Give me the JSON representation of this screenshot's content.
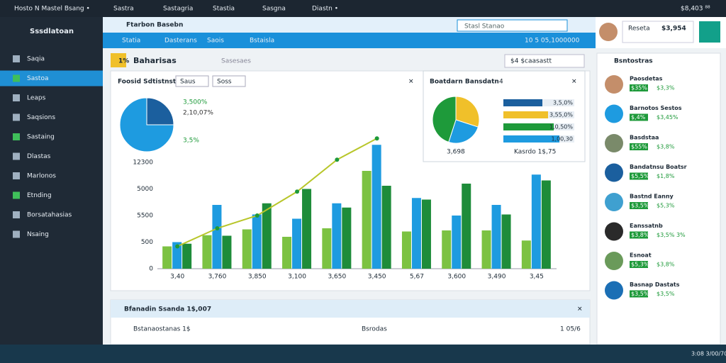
{
  "browser": {
    "tabs": [
      "Hosto N  Mastel Bsang •",
      "Sastra",
      "Sastagria",
      "Stastia",
      "Sasgna",
      "Diastn •"
    ],
    "status": "$8,403 ⁸⁸"
  },
  "sidebar": {
    "brand": "Sssdlatoan",
    "items": [
      "Saqia",
      "Sastoa",
      "Leaps",
      "Saqsions",
      "Sastaing",
      "Dlastas",
      "Marlonos",
      "Etnding",
      "Borsatahasias",
      "Nsaing"
    ]
  },
  "header": {
    "title": "Ftarbon Basebn",
    "tabs": [
      "Statia",
      "Dasterans",
      "Saois",
      "Bstaisla"
    ],
    "search": "Stasl Stanao",
    "filter": "10  5 05,1000000",
    "user_label": "Reseta",
    "user_value": "$3,954"
  },
  "dashboard": {
    "badge": "1%",
    "title": "Baharisas",
    "subtitle": "Sasesaes",
    "dropdown": "$4 $caasastt"
  },
  "chart_panel": {
    "title": "Foosid Sdtistnste",
    "filters": [
      "Saus",
      "Soss"
    ],
    "pie_labels": [
      "3,500%",
      "2,10,07%",
      "3,5%"
    ]
  },
  "widget": {
    "title": "Boatdarn Bansdatn",
    "badge": "4",
    "rows": [
      "3,5,0%",
      "3,55,0%",
      "1,0,50%",
      "1,00,30"
    ],
    "legend": [
      "3,698",
      "Kasrdo 1$,75"
    ]
  },
  "chart_data": [
    {
      "type": "bar",
      "categories": [
        "3,40",
        "3,760",
        "3,850",
        "3,100",
        "3,650",
        "3,450",
        "5,67",
        "3,600",
        "3,490",
        "3,45"
      ],
      "ylim": [
        0,
        2600
      ],
      "yticks": [
        0,
        500,
        {
          "value": 1000,
          "label": "5500"
        },
        {
          "value": 1500,
          "label": "5000"
        },
        {
          "value": 2000,
          "label": "12300"
        }
      ],
      "series": [
        {
          "color": "#7cc242",
          "values": [
            420,
            630,
            740,
            600,
            760,
            1840,
            700,
            720,
            720,
            530
          ]
        },
        {
          "color": "#1e9be0",
          "values": [
            500,
            1200,
            1020,
            940,
            1230,
            2330,
            1330,
            1000,
            1200,
            1770
          ]
        },
        {
          "color": "#1e8c3a",
          "values": [
            470,
            620,
            1230,
            1500,
            1150,
            1560,
            1300,
            1600,
            1020,
            1660
          ]
        },
        {
          "type": "line",
          "color": "#b8c62a",
          "values": [
            420,
            760,
            1000,
            1450,
            2050,
            2450,
            null,
            null,
            null,
            null
          ]
        }
      ]
    },
    {
      "type": "pie",
      "values": [
        25,
        75
      ],
      "colors": [
        "#1b5f9e",
        "#1e9be0"
      ]
    },
    {
      "type": "pie",
      "values": [
        30,
        25,
        45
      ],
      "colors": [
        "#f0c02a",
        "#1e9be0",
        "#1e9a3a"
      ]
    }
  ],
  "right_panel": {
    "title": "Bsntostras",
    "items": [
      {
        "name": "Paosdetas",
        "v1": "$35%",
        "v2": "$3,3%"
      },
      {
        "name": "Barnotos Sestos",
        "v1": "$,4%",
        "v2": "$3,45%"
      },
      {
        "name": "Basdstaa",
        "v1": "$55%",
        "v2": "$3,8%"
      },
      {
        "name": "Bandatnsu Boatsr",
        "v1": "$5,5%",
        "v2": "$1,8%"
      },
      {
        "name": "Bastnd Eanny",
        "v1": "$3,5%",
        "v2": "$5,3%"
      },
      {
        "name": "Eanssatnb",
        "v1": "$3,8%",
        "v2": "$3,5% 3%"
      },
      {
        "name": "Esnoat",
        "v1": "$5,3%",
        "v2": "$3,8%"
      },
      {
        "name": "Basnap Dastats",
        "v1": "$3,5%",
        "v2": "$3,5%"
      }
    ]
  },
  "bottom_panel": {
    "title": "Bfanadin Ssanda 1$,007",
    "row": "Bstanaostanas 1$",
    "col": "Bsrodas",
    "page": "1 05/6"
  },
  "taskbar": {
    "clock": "3:08  3/00/70"
  }
}
